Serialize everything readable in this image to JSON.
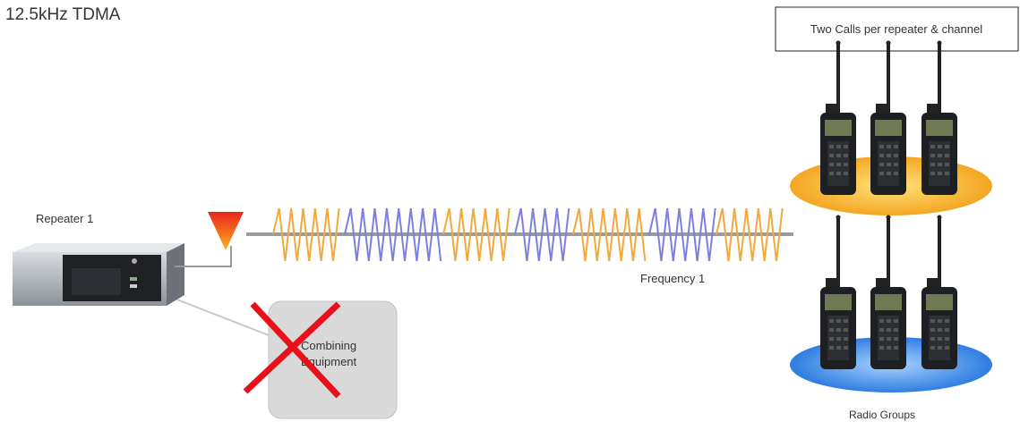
{
  "header": {
    "title": "12.5kHz TDMA"
  },
  "callout": {
    "label": "Two Calls per repeater & channel"
  },
  "repeater": {
    "label": "Repeater 1"
  },
  "channel": {
    "label": "Frequency 1"
  },
  "combiner": {
    "lines": [
      "Combining",
      "Equipment"
    ]
  },
  "radios": {
    "label": "Radio Groups"
  }
}
